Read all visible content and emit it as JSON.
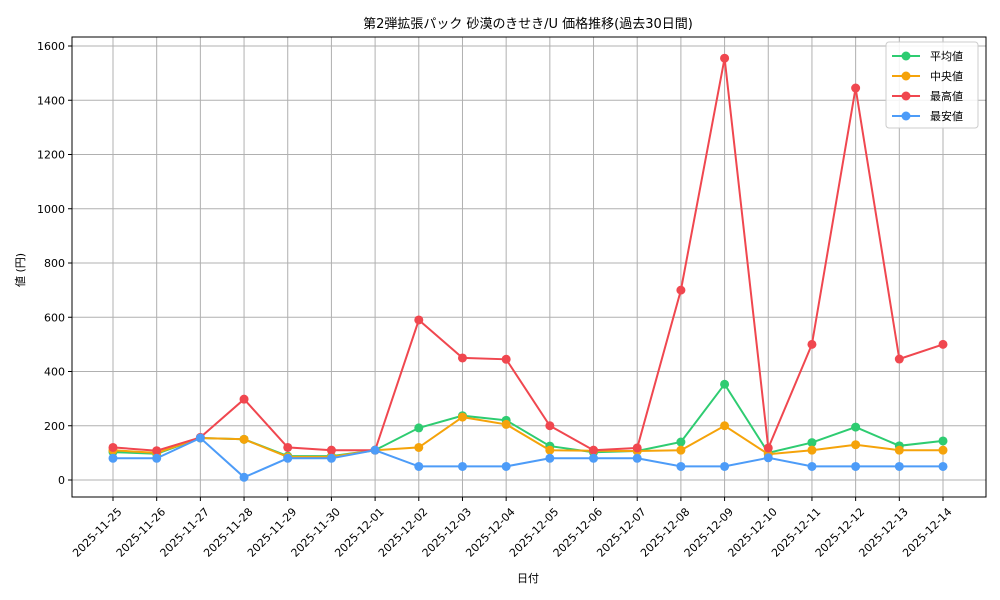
{
  "chart_data": {
    "type": "line",
    "title": "第2弾拡張パック 砂漠のきせき/U 価格推移(過去30日間)",
    "xlabel": "日付",
    "ylabel": "値 (円)",
    "ylim": [
      -60,
      1640
    ],
    "yticks": [
      0,
      200,
      400,
      600,
      800,
      1000,
      1200,
      1400,
      1600
    ],
    "grid": true,
    "legend_position": "upper right",
    "categories": [
      "2025-11-25",
      "2025-11-26",
      "2025-11-27",
      "2025-11-28",
      "2025-11-29",
      "2025-11-30",
      "2025-12-01",
      "2025-12-02",
      "2025-12-03",
      "2025-12-04",
      "2025-12-05",
      "2025-12-06",
      "2025-12-07",
      "2025-12-08",
      "2025-12-09",
      "2025-12-10",
      "2025-12-11",
      "2025-12-12",
      "2025-12-13",
      "2025-12-14"
    ],
    "series": [
      {
        "name": "平均値",
        "color": "#2ecc71",
        "values": [
          103,
          97,
          155,
          150,
          88,
          88,
          110,
          192,
          237,
          220,
          125,
          102,
          107,
          140,
          353,
          100,
          138,
          195,
          126,
          144
        ]
      },
      {
        "name": "中央値",
        "color": "#f5a30a",
        "values": [
          110,
          100,
          155,
          150,
          85,
          85,
          110,
          120,
          232,
          205,
          110,
          108,
          107,
          110,
          200,
          95,
          110,
          130,
          110,
          110
        ]
      },
      {
        "name": "最高値",
        "color": "#f0474f",
        "values": [
          120,
          108,
          157,
          298,
          120,
          110,
          110,
          590,
          450,
          445,
          200,
          110,
          118,
          700,
          1555,
          118,
          500,
          1445,
          446,
          500
        ]
      },
      {
        "name": "最安値",
        "color": "#4d9cf8",
        "values": [
          80,
          80,
          155,
          10,
          80,
          80,
          110,
          50,
          50,
          50,
          80,
          80,
          80,
          50,
          50,
          82,
          50,
          50,
          50,
          50
        ]
      }
    ]
  }
}
